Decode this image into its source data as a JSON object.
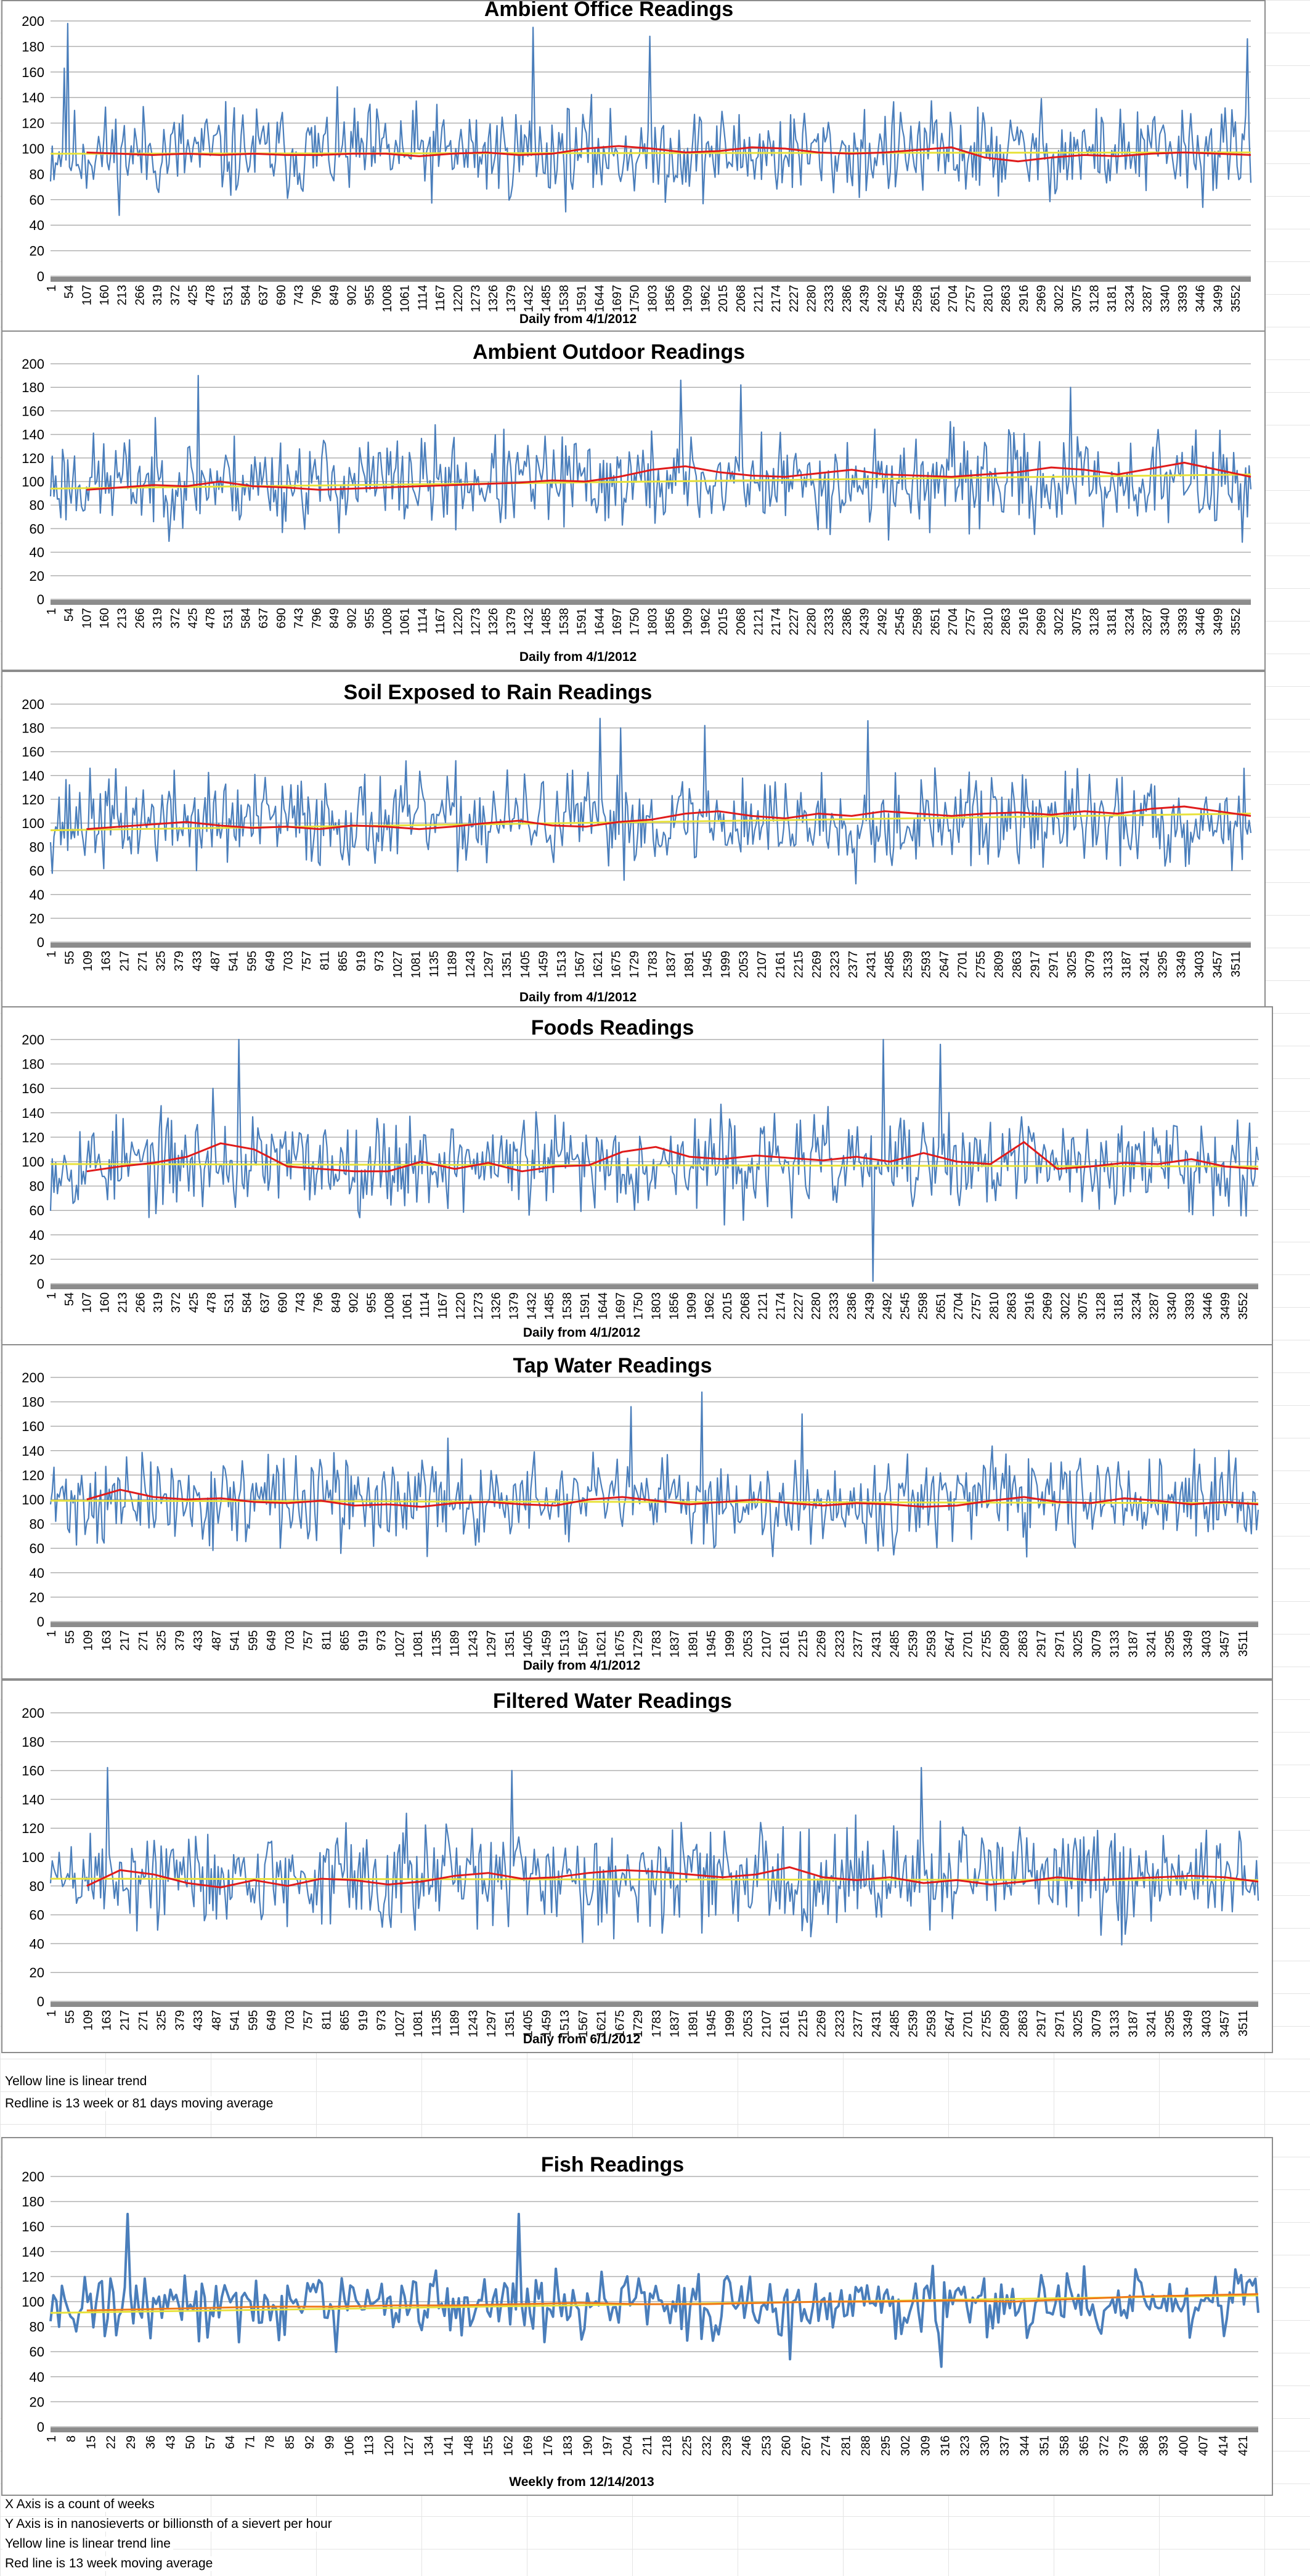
{
  "colors": {
    "series": "#4a7ebb",
    "moving_avg": "#e01b1b",
    "moving_avg_fish": "#f07a1a",
    "trend": "#e8e23c",
    "grid": "#b0b0b0",
    "axis_bar": "#8c8c8c"
  },
  "chart_data": [
    {
      "type": "line",
      "title": "Ambient Office Readings",
      "xlabel": "Daily from 4/1/2012",
      "ylabel": "",
      "ylim": [
        0,
        200
      ],
      "ytick_step": 20,
      "x_tick_labels": [
        "1",
        "54",
        "107",
        "160",
        "213",
        "266",
        "319",
        "372",
        "425",
        "478",
        "531",
        "584",
        "637",
        "690",
        "743",
        "796",
        "849",
        "902",
        "955",
        "1008",
        "1061",
        "1114",
        "1167",
        "1220",
        "1273",
        "1326",
        "1379",
        "1432",
        "1485",
        "1538",
        "1591",
        "1644",
        "1697",
        "1750",
        "1803",
        "1856",
        "1909",
        "1962",
        "2015",
        "2068",
        "2121",
        "2174",
        "2227",
        "2280",
        "2333",
        "2386",
        "2439",
        "2492",
        "2545",
        "2598",
        "2651",
        "2704",
        "2757",
        "2810",
        "2863",
        "2916",
        "2969",
        "3022",
        "3075",
        "3128",
        "3181",
        "3234",
        "3287",
        "3340",
        "3393",
        "3446",
        "3499",
        "3552"
      ],
      "x_max": 3580,
      "series": [
        {
          "role": "readings",
          "mean": 97,
          "amplitude": 24,
          "points": 700,
          "seed": 11,
          "spikes": [
            [
              50,
              198
            ],
            [
              1440,
              195
            ],
            [
              1790,
              188
            ],
            [
              3570,
              186
            ],
            [
              40,
              163
            ]
          ]
        },
        {
          "role": "moving_average",
          "values": [
            97,
            96,
            95,
            96,
            95,
            96,
            95,
            95,
            96,
            96,
            94,
            96,
            97,
            95,
            96,
            100,
            102,
            100,
            97,
            98,
            101,
            100,
            97,
            96,
            97,
            99,
            101,
            93,
            90,
            93,
            95,
            94,
            96,
            97,
            96,
            95
          ]
        },
        {
          "role": "linear_trend",
          "values": [
            96,
            97
          ]
        }
      ]
    },
    {
      "type": "line",
      "title": "Ambient Outdoor Readings",
      "xlabel": "Daily from 4/1/2012",
      "ylabel": "",
      "ylim": [
        0,
        200
      ],
      "ytick_step": 20,
      "x_tick_labels": [
        "1",
        "54",
        "107",
        "160",
        "213",
        "266",
        "319",
        "372",
        "425",
        "478",
        "531",
        "584",
        "637",
        "690",
        "743",
        "796",
        "849",
        "902",
        "955",
        "1008",
        "1061",
        "1114",
        "1167",
        "1220",
        "1273",
        "1326",
        "1379",
        "1432",
        "1485",
        "1538",
        "1591",
        "1644",
        "1697",
        "1750",
        "1803",
        "1856",
        "1909",
        "1962",
        "2015",
        "2068",
        "2121",
        "2174",
        "2227",
        "2280",
        "2333",
        "2386",
        "2439",
        "2492",
        "2545",
        "2598",
        "2651",
        "2704",
        "2757",
        "2810",
        "2863",
        "2916",
        "2969",
        "3022",
        "3075",
        "3128",
        "3181",
        "3234",
        "3287",
        "3340",
        "3393",
        "3446",
        "3499",
        "3552"
      ],
      "x_max": 3580,
      "series": [
        {
          "role": "readings",
          "mean": 100,
          "amplitude": 26,
          "points": 700,
          "seed": 23,
          "spikes": [
            [
              440,
              190
            ],
            [
              1880,
              186
            ],
            [
              2060,
              182
            ],
            [
              3040,
              180
            ]
          ]
        },
        {
          "role": "moving_average",
          "values": [
            93,
            95,
            97,
            96,
            100,
            96,
            95,
            93,
            94,
            95,
            96,
            97,
            98,
            99,
            101,
            100,
            104,
            110,
            113,
            108,
            105,
            104,
            107,
            110,
            106,
            105,
            104,
            106,
            108,
            112,
            110,
            106,
            111,
            116,
            110,
            104
          ]
        },
        {
          "role": "linear_trend",
          "values": [
            94,
            106
          ]
        }
      ]
    },
    {
      "type": "line",
      "title": "Soil Exposed to Rain Readings",
      "xlabel": "Daily from 4/1/2012",
      "ylabel": "",
      "ylim": [
        0,
        200
      ],
      "ytick_step": 20,
      "x_tick_labels": [
        "1",
        "55",
        "109",
        "163",
        "217",
        "271",
        "325",
        "379",
        "433",
        "487",
        "541",
        "595",
        "649",
        "703",
        "757",
        "811",
        "865",
        "919",
        "973",
        "1027",
        "1081",
        "1135",
        "1189",
        "1243",
        "1297",
        "1351",
        "1405",
        "1459",
        "1513",
        "1567",
        "1621",
        "1675",
        "1729",
        "1783",
        "1837",
        "1891",
        "1945",
        "1999",
        "2053",
        "2107",
        "2161",
        "2215",
        "2269",
        "2323",
        "2377",
        "2431",
        "2485",
        "2539",
        "2593",
        "2647",
        "2701",
        "2755",
        "2809",
        "2863",
        "2917",
        "2971",
        "3025",
        "3079",
        "3133",
        "3187",
        "3241",
        "3295",
        "3349",
        "3403",
        "3457",
        "3511"
      ],
      "x_max": 3580,
      "series": [
        {
          "role": "readings",
          "mean": 102,
          "amplitude": 26,
          "points": 700,
          "seed": 37,
          "spikes": [
            [
              1640,
              188
            ],
            [
              2440,
              186
            ],
            [
              1950,
              182
            ],
            [
              1700,
              180
            ]
          ]
        },
        {
          "role": "moving_average",
          "values": [
            95,
            97,
            99,
            101,
            98,
            96,
            97,
            95,
            98,
            97,
            95,
            97,
            100,
            102,
            98,
            97,
            101,
            103,
            108,
            110,
            106,
            104,
            108,
            106,
            110,
            108,
            106,
            108,
            109,
            107,
            110,
            108,
            112,
            114,
            110,
            106
          ]
        },
        {
          "role": "linear_trend",
          "values": [
            94,
            108
          ]
        }
      ]
    },
    {
      "type": "line",
      "title": "Foods Readings",
      "xlabel": "Daily from 4/1/2012",
      "ylabel": "",
      "ylim": [
        0,
        200
      ],
      "ytick_step": 20,
      "x_tick_labels": [
        "1",
        "54",
        "107",
        "160",
        "213",
        "266",
        "319",
        "372",
        "425",
        "478",
        "531",
        "584",
        "637",
        "690",
        "743",
        "796",
        "849",
        "902",
        "955",
        "1008",
        "1061",
        "1114",
        "1167",
        "1220",
        "1273",
        "1326",
        "1379",
        "1432",
        "1485",
        "1538",
        "1591",
        "1644",
        "1697",
        "1750",
        "1803",
        "1856",
        "1909",
        "1962",
        "2015",
        "2068",
        "2121",
        "2174",
        "2227",
        "2280",
        "2333",
        "2386",
        "2439",
        "2492",
        "2545",
        "2598",
        "2651",
        "2704",
        "2757",
        "2810",
        "2863",
        "2916",
        "2969",
        "3022",
        "3075",
        "3128",
        "3181",
        "3234",
        "3287",
        "3340",
        "3393",
        "3446",
        "3499",
        "3552"
      ],
      "x_max": 3580,
      "series": [
        {
          "role": "readings",
          "mean": 99,
          "amplitude": 25,
          "points": 700,
          "seed": 53,
          "spikes": [
            [
              560,
              200
            ],
            [
              2470,
              200
            ],
            [
              2640,
              196
            ],
            [
              2440,
              2
            ],
            [
              480,
              160
            ]
          ]
        },
        {
          "role": "moving_average",
          "values": [
            92,
            96,
            99,
            104,
            115,
            110,
            96,
            94,
            92,
            92,
            100,
            94,
            99,
            92,
            96,
            97,
            108,
            112,
            104,
            102,
            105,
            103,
            101,
            104,
            100,
            107,
            100,
            98,
            116,
            94,
            96,
            99,
            98,
            102,
            96,
            94
          ]
        },
        {
          "role": "linear_trend",
          "values": [
            98,
            96
          ]
        }
      ]
    },
    {
      "type": "line",
      "title": "Tap Water Readings",
      "xlabel": "Daily from 4/1/2012",
      "ylabel": "",
      "ylim": [
        0,
        200
      ],
      "ytick_step": 20,
      "x_tick_labels": [
        "1",
        "55",
        "109",
        "163",
        "217",
        "271",
        "325",
        "379",
        "433",
        "487",
        "541",
        "595",
        "649",
        "703",
        "757",
        "811",
        "865",
        "919",
        "973",
        "1027",
        "1081",
        "1135",
        "1189",
        "1243",
        "1297",
        "1351",
        "1405",
        "1459",
        "1513",
        "1567",
        "1621",
        "1675",
        "1729",
        "1783",
        "1837",
        "1891",
        "1945",
        "1999",
        "2053",
        "2107",
        "2161",
        "2215",
        "2269",
        "2323",
        "2377",
        "2431",
        "2485",
        "2539",
        "2593",
        "2647",
        "2701",
        "2755",
        "2809",
        "2863",
        "2917",
        "2971",
        "3025",
        "3079",
        "3133",
        "3187",
        "3241",
        "3295",
        "3349",
        "3403",
        "3457",
        "3511"
      ],
      "x_max": 3580,
      "series": [
        {
          "role": "readings",
          "mean": 99,
          "amplitude": 24,
          "points": 700,
          "seed": 71,
          "spikes": [
            [
              1930,
              188
            ],
            [
              1720,
              176
            ],
            [
              2230,
              170
            ]
          ]
        },
        {
          "role": "moving_average",
          "values": [
            100,
            108,
            102,
            100,
            101,
            98,
            97,
            99,
            95,
            96,
            94,
            97,
            98,
            96,
            95,
            100,
            102,
            99,
            96,
            98,
            100,
            97,
            95,
            97,
            96,
            94,
            95,
            99,
            102,
            98,
            97,
            101,
            99,
            96,
            98,
            96
          ]
        },
        {
          "role": "linear_trend",
          "values": [
            99,
            97
          ]
        }
      ]
    },
    {
      "type": "line",
      "title": "Filtered Water Readings",
      "xlabel": "Daily from 6/1/2012",
      "ylabel": "",
      "ylim": [
        0,
        200
      ],
      "ytick_step": 20,
      "x_tick_labels": [
        "1",
        "55",
        "109",
        "163",
        "217",
        "271",
        "325",
        "379",
        "433",
        "487",
        "541",
        "595",
        "649",
        "703",
        "757",
        "811",
        "865",
        "919",
        "973",
        "1027",
        "1081",
        "1135",
        "1189",
        "1243",
        "1297",
        "1351",
        "1405",
        "1459",
        "1513",
        "1567",
        "1621",
        "1675",
        "1729",
        "1783",
        "1837",
        "1891",
        "1945",
        "1999",
        "2053",
        "2107",
        "2161",
        "2215",
        "2269",
        "2323",
        "2377",
        "2431",
        "2485",
        "2539",
        "2593",
        "2647",
        "2701",
        "2755",
        "2809",
        "2863",
        "2917",
        "2971",
        "3025",
        "3079",
        "3133",
        "3187",
        "3241",
        "3295",
        "3349",
        "3403",
        "3457",
        "3511"
      ],
      "x_max": 3580,
      "series": [
        {
          "role": "readings",
          "mean": 86,
          "amplitude": 23,
          "points": 700,
          "seed": 89,
          "spikes": [
            [
              170,
              162
            ],
            [
              2580,
              162
            ],
            [
              1370,
              160
            ]
          ]
        },
        {
          "role": "moving_average",
          "values": [
            80,
            91,
            88,
            82,
            79,
            84,
            80,
            85,
            84,
            81,
            83,
            87,
            89,
            85,
            86,
            89,
            91,
            90,
            88,
            86,
            88,
            93,
            86,
            84,
            86,
            82,
            84,
            81,
            83,
            86,
            84,
            85,
            86,
            87,
            86,
            83
          ]
        },
        {
          "role": "linear_trend",
          "values": [
            85,
            84
          ]
        }
      ]
    },
    {
      "type": "line",
      "title": "Fish Readings",
      "xlabel": "Weekly from 12/14/2013",
      "ylabel": "",
      "ylim": [
        0,
        200
      ],
      "ytick_step": 20,
      "x_tick_labels": [
        "1",
        "8",
        "15",
        "22",
        "29",
        "36",
        "43",
        "50",
        "57",
        "64",
        "71",
        "78",
        "85",
        "92",
        "99",
        "106",
        "113",
        "120",
        "127",
        "134",
        "141",
        "148",
        "155",
        "162",
        "169",
        "176",
        "183",
        "190",
        "197",
        "204",
        "211",
        "218",
        "225",
        "232",
        "239",
        "246",
        "253",
        "260",
        "267",
        "274",
        "281",
        "288",
        "295",
        "302",
        "309",
        "316",
        "323",
        "330",
        "337",
        "344",
        "351",
        "358",
        "365",
        "372",
        "379",
        "386",
        "393",
        "400",
        "407",
        "414",
        "421"
      ],
      "x_max": 424,
      "series": [
        {
          "role": "readings",
          "mean": 98,
          "amplitude": 17,
          "points": 424,
          "seed": 131,
          "spikes": [
            [
              27,
              170
            ],
            [
              164,
              170
            ],
            [
              313,
              48
            ],
            [
              260,
              54
            ],
            [
              100,
              60
            ]
          ]
        },
        {
          "role": "moving_average",
          "values": [
            93,
            94,
            95,
            96,
            96,
            97,
            97,
            98,
            99,
            98,
            98,
            99,
            100,
            100,
            101,
            100,
            102,
            104,
            105,
            106
          ]
        },
        {
          "role": "linear_trend",
          "values": [
            91,
            105
          ]
        }
      ]
    }
  ],
  "notes": {
    "line1": "Yellow line is linear trend",
    "line2": "Redline is 13 week or 81 days moving average",
    "line3": "X Axis is a count of weeks",
    "line4": "Y Axis is in nanosieverts or billionsth of a sievert per hour",
    "line5": "Yellow line is linear trend line",
    "line6": "Red line is 13 week moving average"
  }
}
